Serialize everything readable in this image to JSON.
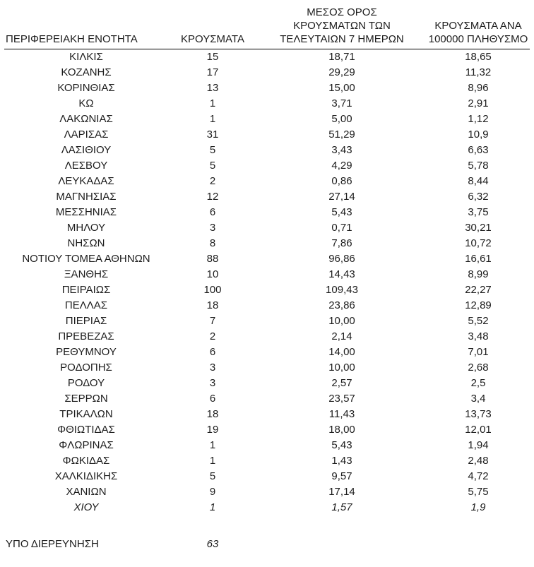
{
  "table": {
    "headers": [
      {
        "lines": [
          "ΠΕΡΙΦΕΡΕΙΑΚΗ ΕΝΟΤΗΤΑ"
        ]
      },
      {
        "lines": [
          "ΚΡΟΥΣΜΑΤΑ"
        ]
      },
      {
        "lines": [
          "ΜΕΣΟΣ ΟΡΟΣ",
          "ΚΡΟΥΣΜΑΤΩΝ ΤΩΝ",
          "ΤΕΛΕΥΤΑΙΩΝ 7 ΗΜΕΡΩΝ"
        ]
      },
      {
        "lines": [
          "ΚΡΟΥΣΜΑΤΑ ΑΝΑ",
          "100000 ΠΛΗΘΥΣΜΟ"
        ]
      }
    ],
    "rows": [
      {
        "region": "ΚΙΛΚΙΣ",
        "cases": "15",
        "avg7": "18,71",
        "per100k": "18,65",
        "italic": false
      },
      {
        "region": "ΚΟΖΑΝΗΣ",
        "cases": "17",
        "avg7": "29,29",
        "per100k": "11,32",
        "italic": false
      },
      {
        "region": "ΚΟΡΙΝΘΙΑΣ",
        "cases": "13",
        "avg7": "15,00",
        "per100k": "8,96",
        "italic": false
      },
      {
        "region": "ΚΩ",
        "cases": "1",
        "avg7": "3,71",
        "per100k": "2,91",
        "italic": false
      },
      {
        "region": "ΛΑΚΩΝΙΑΣ",
        "cases": "1",
        "avg7": "5,00",
        "per100k": "1,12",
        "italic": false
      },
      {
        "region": "ΛΑΡΙΣΑΣ",
        "cases": "31",
        "avg7": "51,29",
        "per100k": "10,9",
        "italic": false
      },
      {
        "region": "ΛΑΣΙΘΙΟΥ",
        "cases": "5",
        "avg7": "3,43",
        "per100k": "6,63",
        "italic": false
      },
      {
        "region": "ΛΕΣΒΟΥ",
        "cases": "5",
        "avg7": "4,29",
        "per100k": "5,78",
        "italic": false
      },
      {
        "region": "ΛΕΥΚΑΔΑΣ",
        "cases": "2",
        "avg7": "0,86",
        "per100k": "8,44",
        "italic": false
      },
      {
        "region": "ΜΑΓΝΗΣΙΑΣ",
        "cases": "12",
        "avg7": "27,14",
        "per100k": "6,32",
        "italic": false
      },
      {
        "region": "ΜΕΣΣΗΝΙΑΣ",
        "cases": "6",
        "avg7": "5,43",
        "per100k": "3,75",
        "italic": false
      },
      {
        "region": "ΜΗΛΟΥ",
        "cases": "3",
        "avg7": "0,71",
        "per100k": "30,21",
        "italic": false
      },
      {
        "region": "ΝΗΣΩΝ",
        "cases": "8",
        "avg7": "7,86",
        "per100k": "10,72",
        "italic": false
      },
      {
        "region": "ΝΟΤΙΟΥ ΤΟΜΕΑ ΑΘΗΝΩΝ",
        "cases": "88",
        "avg7": "96,86",
        "per100k": "16,61",
        "italic": false
      },
      {
        "region": "ΞΑΝΘΗΣ",
        "cases": "10",
        "avg7": "14,43",
        "per100k": "8,99",
        "italic": false
      },
      {
        "region": "ΠΕΙΡΑΙΩΣ",
        "cases": "100",
        "avg7": "109,43",
        "per100k": "22,27",
        "italic": false
      },
      {
        "region": "ΠΕΛΛΑΣ",
        "cases": "18",
        "avg7": "23,86",
        "per100k": "12,89",
        "italic": false
      },
      {
        "region": "ΠΙΕΡΙΑΣ",
        "cases": "7",
        "avg7": "10,00",
        "per100k": "5,52",
        "italic": false
      },
      {
        "region": "ΠΡΕΒΕΖΑΣ",
        "cases": "2",
        "avg7": "2,14",
        "per100k": "3,48",
        "italic": false
      },
      {
        "region": "ΡΕΘΥΜΝΟΥ",
        "cases": "6",
        "avg7": "14,00",
        "per100k": "7,01",
        "italic": false
      },
      {
        "region": "ΡΟΔΟΠΗΣ",
        "cases": "3",
        "avg7": "10,00",
        "per100k": "2,68",
        "italic": false
      },
      {
        "region": "ΡΟΔΟΥ",
        "cases": "3",
        "avg7": "2,57",
        "per100k": "2,5",
        "italic": false
      },
      {
        "region": "ΣΕΡΡΩΝ",
        "cases": "6",
        "avg7": "23,57",
        "per100k": "3,4",
        "italic": false
      },
      {
        "region": "ΤΡΙΚΑΛΩΝ",
        "cases": "18",
        "avg7": "11,43",
        "per100k": "13,73",
        "italic": false
      },
      {
        "region": "ΦΘΙΩΤΙΔΑΣ",
        "cases": "19",
        "avg7": "18,00",
        "per100k": "12,01",
        "italic": false
      },
      {
        "region": "ΦΛΩΡΙΝΑΣ",
        "cases": "1",
        "avg7": "5,43",
        "per100k": "1,94",
        "italic": false
      },
      {
        "region": "ΦΩΚΙΔΑΣ",
        "cases": "1",
        "avg7": "1,43",
        "per100k": "2,48",
        "italic": false
      },
      {
        "region": "ΧΑΛΚΙΔΙΚΗΣ",
        "cases": "5",
        "avg7": "9,57",
        "per100k": "4,72",
        "italic": false
      },
      {
        "region": "ΧΑΝΙΩΝ",
        "cases": "9",
        "avg7": "17,14",
        "per100k": "5,75",
        "italic": false
      },
      {
        "region": "ΧΙΟΥ",
        "cases": "1",
        "avg7": "1,57",
        "per100k": "1,9",
        "italic": true
      }
    ],
    "footer": {
      "label": "ΥΠΟ ΔΙΕΡΕΥΝΗΣΗ",
      "cases": "63"
    }
  }
}
